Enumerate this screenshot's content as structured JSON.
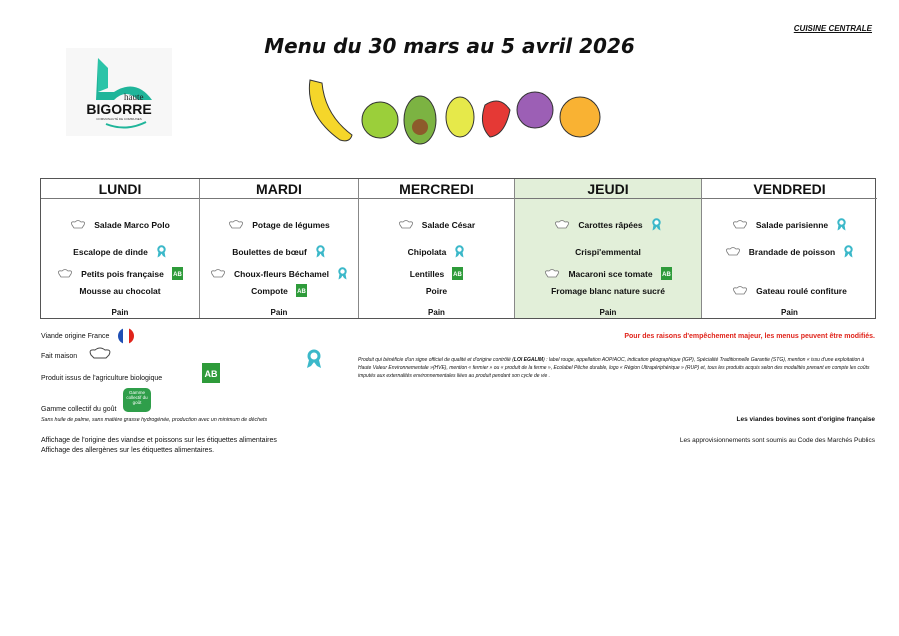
{
  "header": {
    "cuisine": "CUISINE CENTRALE",
    "title": "Menu du 30 mars au 5 avril 2026",
    "logo_text": "haute BIGORRE COMMUNAUTÉ DE COMMUNES"
  },
  "days": [
    {
      "name": "LUNDI",
      "highlight": false,
      "items": [
        {
          "text": "Salade Marco Polo",
          "chef": true,
          "badge": ""
        },
        {
          "text": "Escalope de dinde",
          "chef": false,
          "badge": "label-rouge"
        },
        {
          "text": "Petits pois française",
          "chef": true,
          "badge": "bio"
        },
        {
          "text": "Mousse au chocolat",
          "chef": false,
          "badge": ""
        }
      ],
      "bread": "Pain"
    },
    {
      "name": "MARDI",
      "highlight": false,
      "items": [
        {
          "text": "Potage de légumes",
          "chef": true,
          "badge": ""
        },
        {
          "text": "Boulettes de bœuf",
          "chef": false,
          "badge": "label-rouge"
        },
        {
          "text": "Choux-fleurs Béchamel",
          "chef": true,
          "badge": "label-rouge"
        },
        {
          "text": "Compote",
          "chef": false,
          "badge": "bio"
        }
      ],
      "bread": "Pain"
    },
    {
      "name": "MERCREDI",
      "highlight": false,
      "items": [
        {
          "text": "Salade César",
          "chef": true,
          "badge": ""
        },
        {
          "text": "Chipolata",
          "chef": false,
          "badge": "label-rouge"
        },
        {
          "text": "Lentilles",
          "chef": false,
          "badge": "bio"
        },
        {
          "text": "Poire",
          "chef": false,
          "badge": ""
        }
      ],
      "bread": "Pain"
    },
    {
      "name": "JEUDI",
      "highlight": true,
      "items": [
        {
          "text": "Carottes râpées",
          "chef": true,
          "badge": "label-rouge"
        },
        {
          "text": "Crispi'emmental",
          "chef": false,
          "badge": ""
        },
        {
          "text": "Macaroni sce tomate",
          "chef": true,
          "badge": "bio"
        },
        {
          "text": "Fromage blanc nature sucré",
          "chef": false,
          "badge": ""
        }
      ],
      "bread": "Pain"
    },
    {
      "name": "VENDREDI",
      "highlight": false,
      "items": [
        {
          "text": "Salade parisienne",
          "chef": true,
          "badge": "label-rouge"
        },
        {
          "text": "Brandade de poisson",
          "chef": true,
          "badge": "label-rouge"
        },
        {
          "text": "",
          "chef": false,
          "badge": ""
        },
        {
          "text": "Gateau roulé confiture",
          "chef": true,
          "badge": ""
        }
      ],
      "bread": "Pain"
    }
  ],
  "legend": {
    "france": "Viande origine France",
    "fait_maison": "Fait maison",
    "bio": "Produit issus de l'agriculture biologique",
    "gamme": "Gamme collectif du goût",
    "gamme_badge": "Gamme collectif du goût",
    "gamme_note": "Sans huile de palme, sans matière grasse hydrogénée, production avec un minimum de déchets",
    "affichage1": "Affichage de l'origine des viandse et poissons sur les étiquettes alimentaires",
    "affichage2": "Affichage des allergènes sur les étiquettes alimentaires.",
    "egalim_pre": "Produit qui bénéficie d'un signe officiel de qualité et d'origine contrôlé (",
    "egalim_bold": "LOI EGALIM",
    "egalim_post": ") : label rouge, appellation AOP/AOC, indication géographique (IGP), Spécialité Traditionnelle Garantie (STG), mention « issu d'une exploitation à Haute Valeur Environnementale »(HVE), mention « fermier » ou « produit de la ferme », Ecolabel Pêche durable, logo « Région Ultrapériphérique » (RUP) et, tous les produits acquis selon des modalités prenant en compte les coûts imputés aux externalités environnementales liées au produit pendant son cycle de vie .",
    "warning": "Pour des raisons d'empêchement majeur, les menus peuvent être modifiés.",
    "bovines": "Les viandes bovines sont d'origine française",
    "marches": "Les approvisionnements sont soumis au Code des Marchés Publics"
  },
  "colors": {
    "highlight": "#e2efd9",
    "warning": "#e0241b",
    "label_rouge": "#3bb8c9",
    "bio": "#2e9b3a",
    "gamme": "#2f9e4a"
  }
}
